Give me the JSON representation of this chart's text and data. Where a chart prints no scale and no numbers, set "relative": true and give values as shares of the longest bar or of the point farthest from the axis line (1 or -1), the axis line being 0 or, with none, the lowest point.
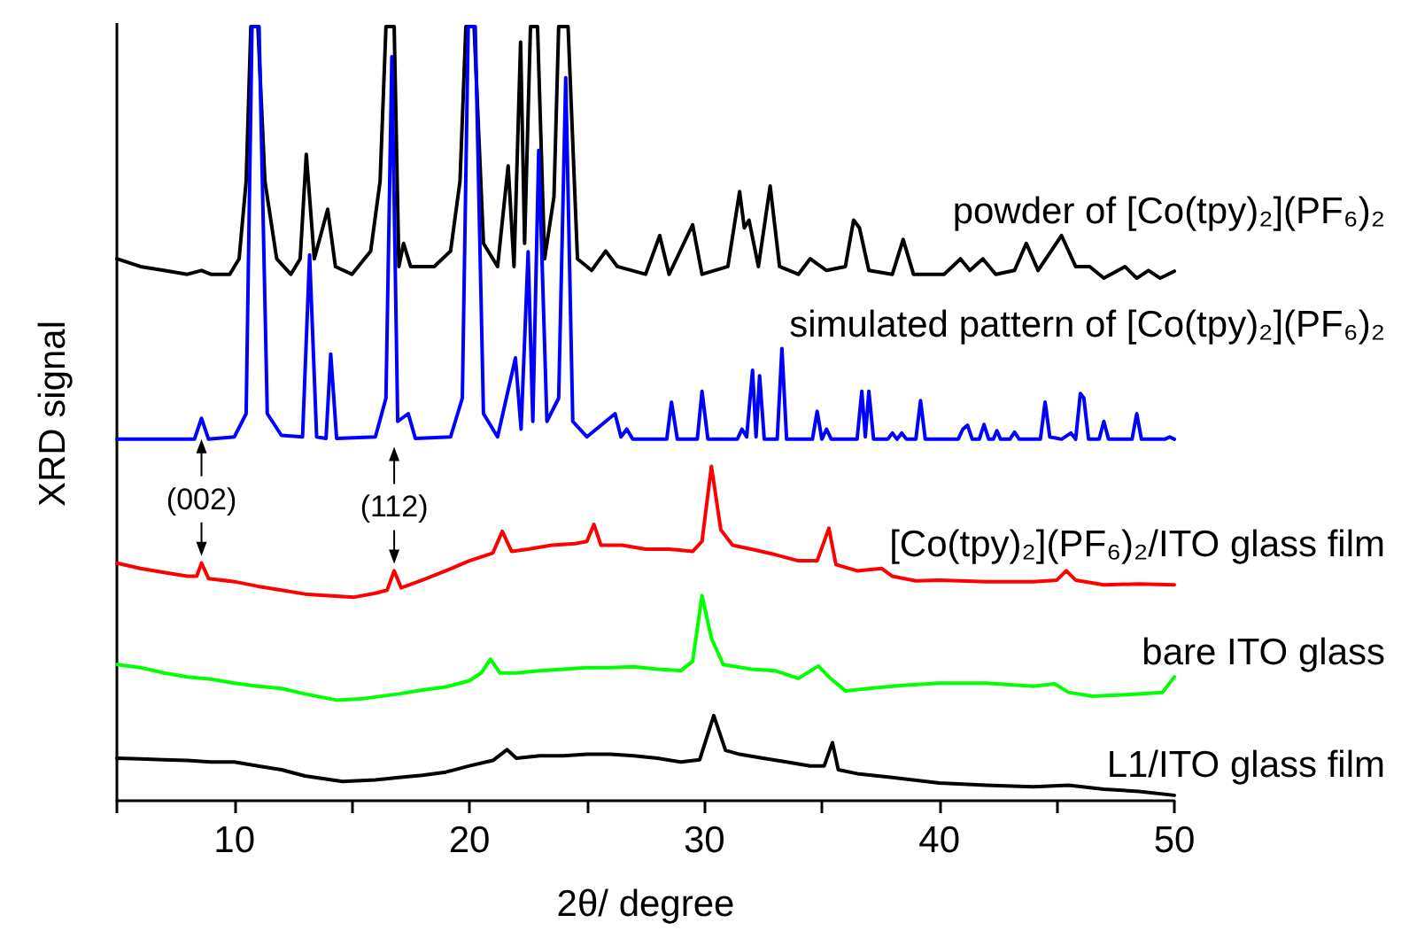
{
  "chart_data": {
    "type": "line",
    "relative": true,
    "xlabel": "2θ/ degree",
    "ylabel": "XRD signal",
    "xlim": [
      5,
      50
    ],
    "xticks": [
      {
        "value": 5,
        "label": null
      },
      10,
      {
        "value": 15,
        "label": null
      },
      20,
      {
        "value": 25,
        "label": null
      },
      30,
      {
        "value": 35,
        "label": null
      },
      40,
      {
        "value": 45,
        "label": null
      },
      50
    ],
    "annotations": [
      {
        "text": "(002)",
        "x": 8.6,
        "y": 0.307
      },
      {
        "text": "(112)",
        "x": 16.8,
        "y": 0.297
      }
    ],
    "series": [
      {
        "name": "powder of [Co(tpy)₂](PF₆)₂",
        "color": "#000000",
        "x": [
          5,
          6,
          7,
          8,
          8.6,
          9,
          9.8,
          10.2,
          10.5,
          10.7,
          11.0,
          11.3,
          11.8,
          12.4,
          12.8,
          13.06,
          13.4,
          13.97,
          14.3,
          15.0,
          15.8,
          16.2,
          16.45,
          16.8,
          17.0,
          17.2,
          17.5,
          18.5,
          19.2,
          19.6,
          19.85,
          20.2,
          20.6,
          21.2,
          21.65,
          21.9,
          22.18,
          22.35,
          22.6,
          22.9,
          23.2,
          23.6,
          23.8,
          24.2,
          24.6,
          25.2,
          25.8,
          26.3,
          27.5,
          28.1,
          28.5,
          29.5,
          29.9,
          31.0,
          31.5,
          31.7,
          31.9,
          32.3,
          32.8,
          33.2,
          34.0,
          34.5,
          35.2,
          36.0,
          36.35,
          36.6,
          37.0,
          38.0,
          38.46,
          38.9,
          40.2,
          40.9,
          41.3,
          41.85,
          42.4,
          43.2,
          43.7,
          44.2,
          45.2,
          45.8,
          46.4,
          47.0,
          47.9,
          48.4,
          48.9,
          49.4,
          50
        ],
        "values": [
          0.7,
          0.69,
          0.685,
          0.68,
          0.685,
          0.68,
          0.68,
          0.7,
          0.8,
          1,
          1,
          0.8,
          0.7,
          0.68,
          0.7,
          0.835,
          0.7,
          0.764,
          0.69,
          0.68,
          0.71,
          0.8,
          1,
          1,
          0.69,
          0.72,
          0.69,
          0.69,
          0.71,
          0.8,
          1,
          1,
          0.72,
          0.69,
          0.82,
          0.69,
          0.98,
          0.72,
          1,
          1,
          0.7,
          0.78,
          1,
          1,
          0.7,
          0.685,
          0.71,
          0.69,
          0.68,
          0.73,
          0.68,
          0.744,
          0.68,
          0.69,
          0.787,
          0.74,
          0.75,
          0.69,
          0.794,
          0.69,
          0.68,
          0.7,
          0.685,
          0.69,
          0.75,
          0.74,
          0.685,
          0.68,
          0.725,
          0.68,
          0.68,
          0.7,
          0.685,
          0.7,
          0.68,
          0.685,
          0.72,
          0.685,
          0.73,
          0.69,
          0.69,
          0.675,
          0.69,
          0.675,
          0.685,
          0.675,
          0.684
        ]
      },
      {
        "name": "simulated pattern of [Co(tpy)₂](PF₆)₂",
        "color": "#0000ff",
        "x": [
          5,
          8.3,
          8.6,
          8.9,
          10.0,
          10.5,
          10.75,
          11.05,
          11.4,
          12.0,
          12.9,
          13.2,
          13.5,
          13.9,
          14.1,
          14.35,
          16.0,
          16.45,
          16.7,
          16.95,
          17.4,
          17.7,
          19.2,
          19.7,
          19.95,
          20.25,
          20.6,
          21.2,
          21.96,
          22.2,
          22.5,
          22.7,
          22.95,
          23.3,
          23.8,
          24.1,
          24.4,
          25.0,
          26.2,
          26.45,
          26.7,
          26.95,
          28.4,
          28.6,
          28.85,
          29.7,
          29.9,
          30.15,
          31.4,
          31.6,
          31.8,
          32.05,
          32.2,
          32.35,
          32.55,
          33.1,
          33.3,
          33.5,
          34.6,
          34.8,
          35.0,
          35.2,
          35.4,
          36.5,
          36.7,
          36.85,
          37.0,
          37.2,
          37.8,
          38.0,
          38.2,
          38.4,
          38.6,
          39.0,
          39.2,
          39.4,
          40.8,
          41.0,
          41.2,
          41.4,
          41.7,
          41.9,
          42.1,
          42.3,
          42.45,
          42.6,
          43.0,
          43.2,
          43.4,
          44.3,
          44.5,
          44.7,
          45.2,
          45.6,
          45.8,
          46.0,
          46.15,
          46.35,
          46.8,
          47.0,
          47.2,
          48.2,
          48.4,
          48.6,
          49.6,
          49.8,
          50
        ],
        "values": [
          0.467,
          0.467,
          0.494,
          0.467,
          0.47,
          0.5,
          1,
          1,
          0.5,
          0.472,
          0.47,
          0.705,
          0.47,
          0.468,
          0.577,
          0.468,
          0.47,
          0.52,
          0.961,
          0.49,
          0.5,
          0.468,
          0.47,
          0.52,
          1,
          1,
          0.5,
          0.47,
          0.572,
          0.48,
          0.709,
          0.49,
          0.84,
          0.49,
          0.52,
          0.934,
          0.49,
          0.47,
          0.5,
          0.47,
          0.48,
          0.467,
          0.467,
          0.515,
          0.467,
          0.467,
          0.529,
          0.467,
          0.467,
          0.48,
          0.47,
          0.556,
          0.47,
          0.549,
          0.467,
          0.467,
          0.584,
          0.467,
          0.467,
          0.503,
          0.467,
          0.48,
          0.467,
          0.467,
          0.529,
          0.47,
          0.529,
          0.467,
          0.467,
          0.475,
          0.467,
          0.475,
          0.467,
          0.467,
          0.517,
          0.467,
          0.467,
          0.48,
          0.485,
          0.467,
          0.467,
          0.486,
          0.467,
          0.467,
          0.478,
          0.467,
          0.467,
          0.476,
          0.467,
          0.467,
          0.515,
          0.47,
          0.467,
          0.475,
          0.467,
          0.526,
          0.52,
          0.467,
          0.467,
          0.49,
          0.467,
          0.467,
          0.5,
          0.467,
          0.467,
          0.47,
          0.467
        ]
      },
      {
        "name": "[Co(tpy)₂](PF₆)₂/ITO glass film",
        "color": "#ff0000",
        "x": [
          5,
          6,
          7,
          8,
          8.4,
          8.6,
          8.9,
          10,
          11,
          12,
          13,
          14,
          15.1,
          16,
          16.5,
          16.8,
          17.1,
          18,
          19,
          20,
          21,
          21.4,
          21.8,
          22.5,
          23.5,
          24.5,
          25.0,
          25.3,
          25.6,
          26.5,
          27.5,
          28.5,
          29.5,
          29.9,
          30.3,
          30.7,
          31.2,
          32,
          33,
          34,
          34.8,
          35.3,
          35.6,
          36.5,
          37.55,
          38,
          39,
          40,
          42,
          44,
          45.0,
          45.4,
          45.8,
          47,
          48.5,
          50
        ],
        "values": [
          0.307,
          0.3,
          0.295,
          0.29,
          0.29,
          0.307,
          0.287,
          0.283,
          0.277,
          0.272,
          0.267,
          0.265,
          0.263,
          0.268,
          0.272,
          0.297,
          0.275,
          0.285,
          0.297,
          0.31,
          0.32,
          0.348,
          0.322,
          0.325,
          0.33,
          0.332,
          0.335,
          0.357,
          0.33,
          0.33,
          0.325,
          0.325,
          0.322,
          0.335,
          0.432,
          0.35,
          0.33,
          0.325,
          0.318,
          0.31,
          0.31,
          0.352,
          0.305,
          0.297,
          0.3,
          0.29,
          0.284,
          0.285,
          0.283,
          0.283,
          0.285,
          0.297,
          0.285,
          0.279,
          0.28,
          0.279
        ]
      },
      {
        "name": "bare ITO glass",
        "color": "#00ff00",
        "x": [
          5,
          6,
          7,
          8,
          9,
          10,
          11,
          12,
          13,
          14.35,
          15.5,
          17,
          18,
          19,
          20,
          20.5,
          20.9,
          21.3,
          22,
          23,
          24,
          25,
          26,
          27,
          28,
          29,
          29.5,
          29.9,
          30.3,
          30.8,
          32,
          33,
          34,
          34.85,
          35.3,
          36,
          37,
          38,
          40,
          42,
          44,
          44.9,
          45.5,
          46.5,
          48,
          49.5,
          50
        ],
        "values": [
          0.176,
          0.172,
          0.165,
          0.16,
          0.157,
          0.152,
          0.148,
          0.145,
          0.138,
          0.13,
          0.132,
          0.138,
          0.143,
          0.147,
          0.155,
          0.165,
          0.183,
          0.165,
          0.165,
          0.168,
          0.17,
          0.172,
          0.172,
          0.173,
          0.17,
          0.168,
          0.18,
          0.265,
          0.21,
          0.176,
          0.17,
          0.168,
          0.158,
          0.174,
          0.16,
          0.142,
          0.145,
          0.148,
          0.152,
          0.152,
          0.148,
          0.151,
          0.14,
          0.135,
          0.137,
          0.14,
          0.16
        ]
      },
      {
        "name": "L1/ITO glass film",
        "color": "#000000",
        "x": [
          5,
          6,
          7,
          8,
          9,
          10,
          11,
          12,
          13,
          14.6,
          16,
          17,
          18,
          19,
          20,
          21,
          21.6,
          22,
          23,
          24,
          25,
          26,
          27,
          28,
          29,
          29.8,
          30.4,
          30.9,
          31.5,
          32.5,
          33.5,
          34.5,
          35.1,
          35.45,
          35.7,
          36.5,
          38,
          40,
          42,
          44,
          45.5,
          47,
          48.5,
          50
        ],
        "values": [
          0.055,
          0.054,
          0.053,
          0.052,
          0.05,
          0.05,
          0.045,
          0.04,
          0.032,
          0.025,
          0.027,
          0.03,
          0.033,
          0.037,
          0.045,
          0.052,
          0.066,
          0.055,
          0.058,
          0.058,
          0.06,
          0.06,
          0.058,
          0.055,
          0.05,
          0.053,
          0.11,
          0.065,
          0.06,
          0.055,
          0.05,
          0.045,
          0.045,
          0.075,
          0.04,
          0.035,
          0.03,
          0.023,
          0.02,
          0.018,
          0.02,
          0.015,
          0.012,
          0.007
        ]
      }
    ]
  }
}
